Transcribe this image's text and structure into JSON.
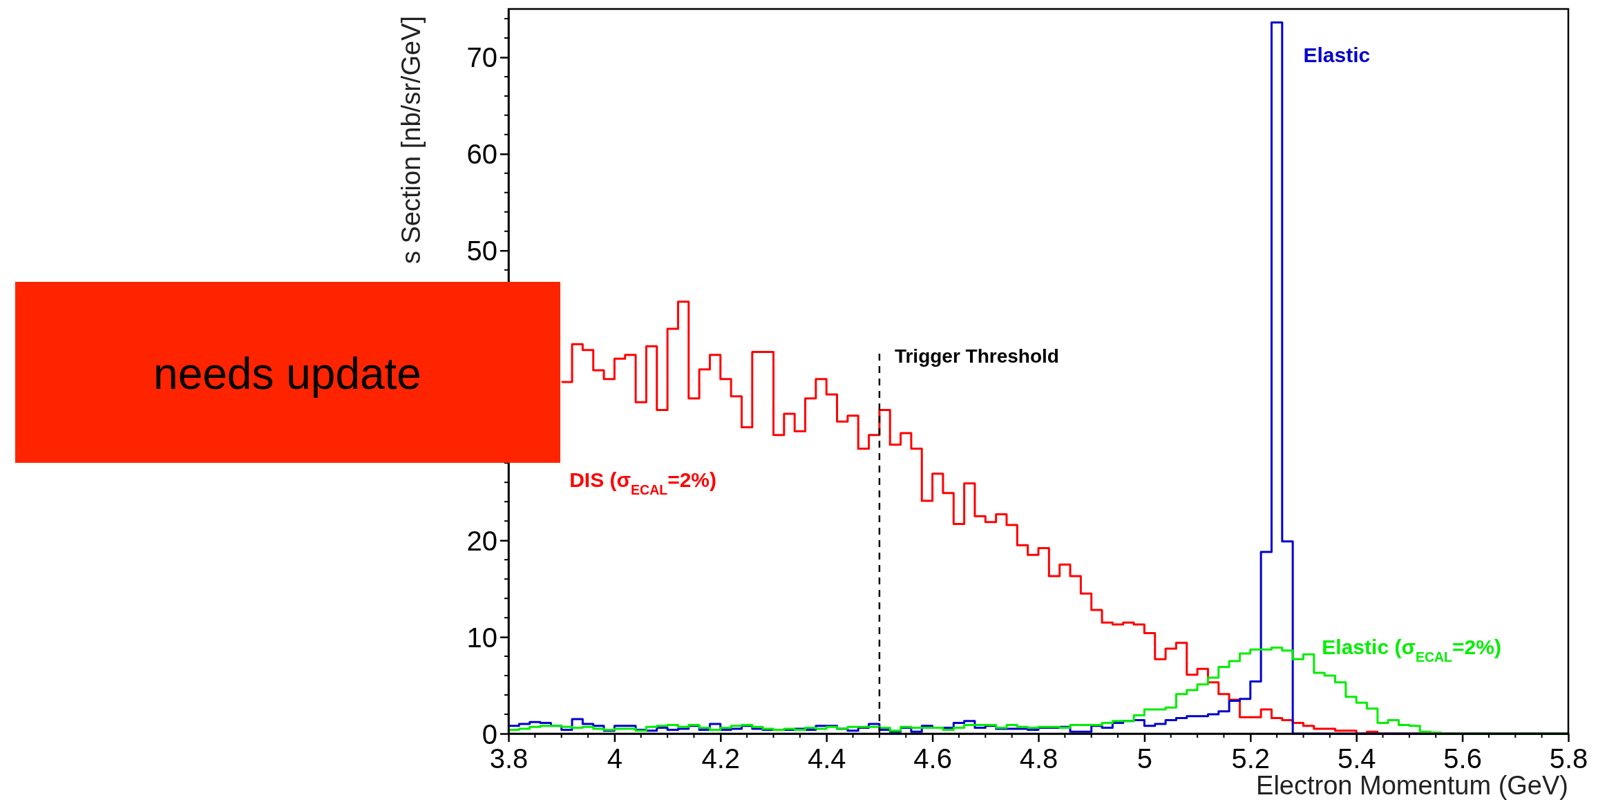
{
  "chart_data": {
    "type": "histogram",
    "xlabel": "Electron Momentum (GeV)",
    "ylabel": "s Section [nb/sr/GeV]",
    "bins": [
      3.8,
      3.82,
      3.84,
      3.86,
      3.88,
      3.9,
      3.92,
      3.94,
      3.96,
      3.98,
      4.0,
      4.02,
      4.04,
      4.06,
      4.08,
      4.1,
      4.12,
      4.14,
      4.16,
      4.18,
      4.2,
      4.22,
      4.24,
      4.26,
      4.28,
      4.3,
      4.32,
      4.34,
      4.36,
      4.38,
      4.4,
      4.42,
      4.44,
      4.46,
      4.48,
      4.5,
      4.52,
      4.54,
      4.56,
      4.58,
      4.6,
      4.62,
      4.64,
      4.66,
      4.68,
      4.7,
      4.72,
      4.74,
      4.76,
      4.78,
      4.8,
      4.82,
      4.84,
      4.86,
      4.88,
      4.9,
      4.92,
      4.94,
      4.96,
      4.98,
      5.0,
      5.02,
      5.04,
      5.06,
      5.08,
      5.1,
      5.12,
      5.14,
      5.16,
      5.18,
      5.2,
      5.22,
      5.24,
      5.26,
      5.28,
      5.3,
      5.32,
      5.34,
      5.36,
      5.38,
      5.4,
      5.42,
      5.44,
      5.46,
      5.48,
      5.5,
      5.52,
      5.54,
      5.56,
      5.58,
      5.6,
      5.62,
      5.64,
      5.66,
      5.68,
      5.7,
      5.72,
      5.74,
      5.76,
      5.78,
      5.8
    ],
    "series": [
      {
        "name": "DIS (σ$_{ECAL}$=2%)",
        "color": "#ff0000",
        "bins": [
          3.9,
          3.92,
          3.94,
          3.96,
          3.98,
          4.0,
          4.02,
          4.04,
          4.06,
          4.08,
          4.1,
          4.12,
          4.14,
          4.16,
          4.18,
          4.2,
          4.22,
          4.24,
          4.26,
          4.28,
          4.3,
          4.32,
          4.34,
          4.36,
          4.38,
          4.4,
          4.42,
          4.44,
          4.46,
          4.48,
          4.5,
          4.52,
          4.54,
          4.56,
          4.58,
          4.6,
          4.62,
          4.64,
          4.66,
          4.68,
          4.7,
          4.72,
          4.74,
          4.76,
          4.78,
          4.8,
          4.82,
          4.84,
          4.86,
          4.88,
          4.9,
          4.92,
          4.94,
          4.96,
          4.98,
          5.0,
          5.02,
          5.04,
          5.06,
          5.08,
          5.1,
          5.12,
          5.14,
          5.16,
          5.18,
          5.2,
          5.22,
          5.24,
          5.26,
          5.28,
          5.3,
          5.32,
          5.34,
          5.36,
          5.38,
          5.4,
          5.42,
          5.44,
          5.46,
          5.48,
          5.5,
          5.52,
          5.54,
          5.56,
          5.58,
          5.6,
          5.62,
          5.64,
          5.66,
          5.68,
          5.7,
          5.72,
          5.74,
          5.76,
          5.78,
          5.8
        ],
        "values": [
          36.4,
          40.3,
          39.7,
          37.6,
          36.7,
          38.8,
          39.2,
          34.3,
          40.1,
          33.5,
          41.9,
          44.7,
          34.7,
          37.7,
          39.2,
          36.7,
          34.9,
          31.7,
          39.5,
          39.5,
          30.9,
          33.1,
          31.3,
          34.7,
          36.7,
          35.1,
          32.3,
          32.9,
          29.5,
          30.9,
          33.5,
          29.9,
          31.1,
          29.5,
          24.1,
          26.9,
          24.9,
          21.7,
          25.9,
          22.5,
          21.9,
          22.7,
          21.6,
          19.5,
          18.5,
          19.2,
          16.3,
          17.5,
          16.3,
          14.5,
          12.8,
          11.5,
          11.3,
          11.5,
          11.3,
          10.4,
          7.7,
          8.8,
          9.4,
          6.1,
          6.7,
          5.3,
          4.1,
          3.5,
          1.7,
          1.7,
          2.5,
          1.6,
          1.4,
          1.1,
          0.8,
          0.5,
          0.5,
          0.3,
          0.3,
          0,
          0.2,
          0,
          0,
          0,
          0,
          0,
          0,
          0,
          0,
          0,
          0,
          0,
          0,
          0,
          0,
          0,
          0,
          0,
          0
        ]
      },
      {
        "name": "Elastic",
        "color": "#0000cc",
        "values": [
          0.8,
          1.0,
          1.2,
          1.1,
          0.8,
          0.4,
          1.5,
          1.0,
          0.8,
          0.3,
          0.8,
          0.8,
          0.4,
          0.3,
          0.6,
          0.4,
          0.5,
          0.8,
          0.4,
          1.0,
          0.4,
          0.5,
          0.8,
          0.5,
          0.4,
          0.4,
          0.4,
          0.5,
          0.4,
          0.8,
          0.8,
          0.5,
          0.3,
          0.6,
          1.0,
          0.4,
          0.2,
          0.6,
          0.2,
          0.8,
          0.6,
          0.6,
          1.1,
          1.3,
          0.6,
          0.8,
          0.5,
          0.5,
          0.5,
          0.4,
          0.6,
          0.6,
          0.7,
          0.2,
          0.2,
          0.8,
          0.6,
          1.1,
          1.3,
          1.4,
          0.8,
          1.0,
          1.4,
          1.6,
          1.8,
          1.8,
          2.0,
          2.3,
          3.4,
          3.6,
          5.4,
          18.8,
          73.6,
          19.9,
          0,
          0,
          0,
          0,
          0,
          0,
          0,
          0,
          0,
          0,
          0,
          0,
          0,
          0,
          0,
          0,
          0,
          0,
          0,
          0,
          0,
          0,
          0,
          0,
          0,
          0
        ]
      },
      {
        "name": "Elastic (σ$_{ECAL}$=2%)",
        "color": "#00ee00",
        "values": [
          0.4,
          0.5,
          0.7,
          0.8,
          0.8,
          0.7,
          0.6,
          0.7,
          0.5,
          0.4,
          0.5,
          0.5,
          0.3,
          0.7,
          0.8,
          0.9,
          0.7,
          0.9,
          0.6,
          0.4,
          0.6,
          0.8,
          0.9,
          0.7,
          0.5,
          0.4,
          0.5,
          0.4,
          0.6,
          0.5,
          0.7,
          0.5,
          0.7,
          0.7,
          0.7,
          0.6,
          0.3,
          0.7,
          0.6,
          0.6,
          0.6,
          0.4,
          0.6,
          0.9,
          0.9,
          0.9,
          0.6,
          0.9,
          0.7,
          0.6,
          0.7,
          0.7,
          0.6,
          0.9,
          0.9,
          0.9,
          1.1,
          1.3,
          1.3,
          1.9,
          2.5,
          2.5,
          2.7,
          4.1,
          4.5,
          5.1,
          5.8,
          6.9,
          7.5,
          8.3,
          8.7,
          8.7,
          8.9,
          8.6,
          7.7,
          8.2,
          6.3,
          6.0,
          5.3,
          3.8,
          3.2,
          2.6,
          1.1,
          1.4,
          0.9,
          0.8,
          0.2,
          0.1,
          0,
          0,
          0,
          0,
          0,
          0,
          0,
          0,
          0,
          0,
          0,
          0
        ]
      }
    ],
    "xlim": [
      3.8,
      5.8
    ],
    "xticks": [
      3.8,
      4,
      4.2,
      4.4,
      4.6,
      4.8,
      5,
      5.2,
      5.4,
      5.6,
      5.8
    ],
    "ylim": [
      0,
      75
    ],
    "yticks": [
      0,
      10,
      20,
      50,
      60,
      70
    ],
    "ref_lines": [
      {
        "axis": "x",
        "value": 4.5,
        "label": "Trigger Threshold",
        "color": "#000000",
        "line_style": "dashed"
      }
    ],
    "annotations": [
      "needs update"
    ],
    "grid": false
  }
}
